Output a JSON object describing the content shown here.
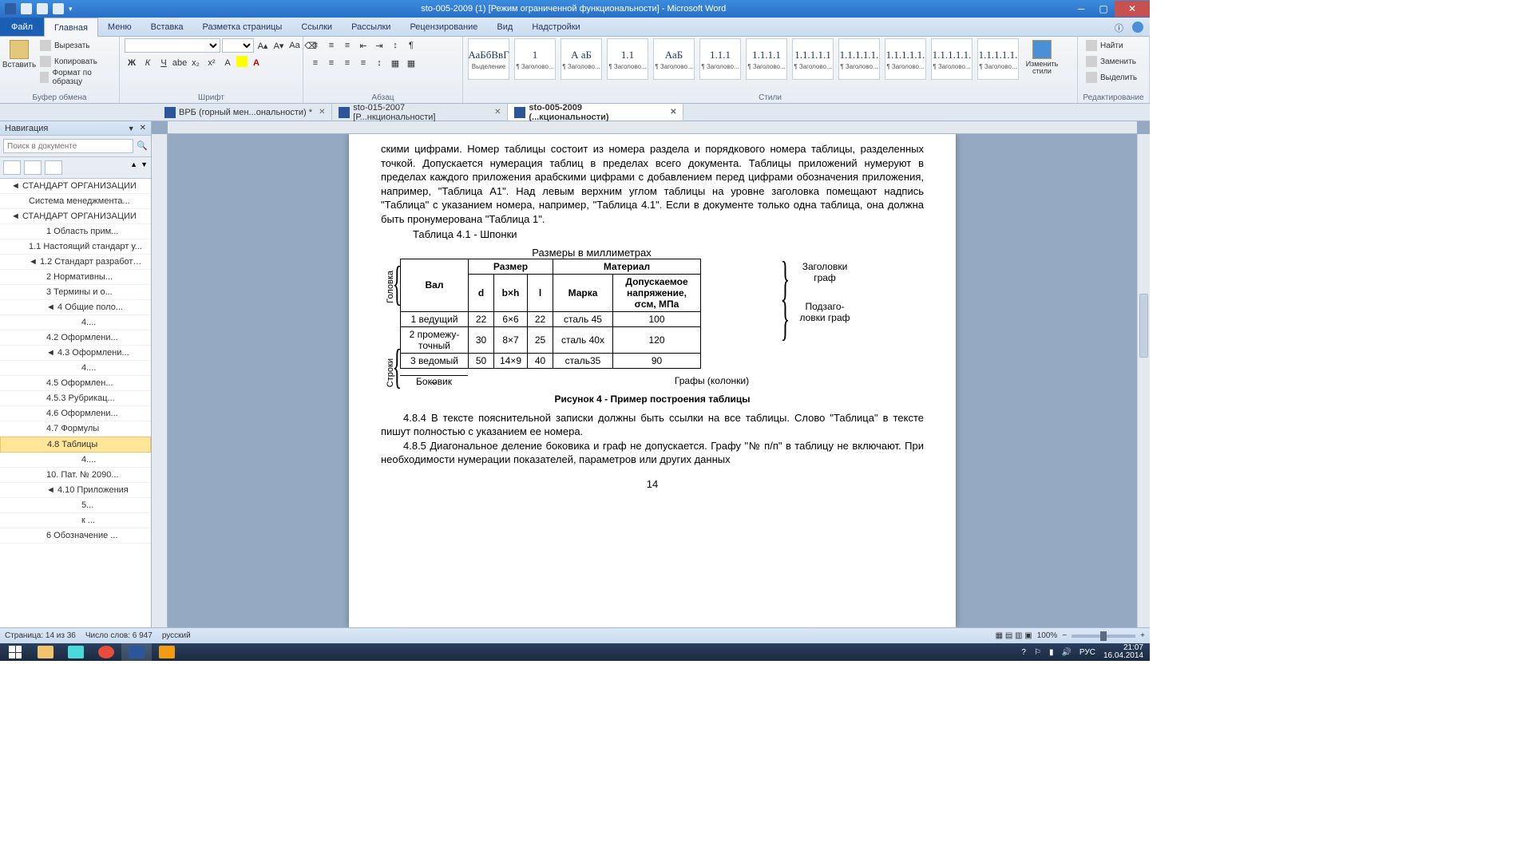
{
  "title": "sto-005-2009 (1) [Режим ограниченной функциональности] - Microsoft Word",
  "ribbon": {
    "file": "Файл",
    "tabs": [
      "Главная",
      "Меню",
      "Вставка",
      "Разметка страницы",
      "Ссылки",
      "Рассылки",
      "Рецензирование",
      "Вид",
      "Надстройки"
    ],
    "active": 0,
    "groups": {
      "clipboard": {
        "title": "Буфер обмена",
        "paste": "Вставить",
        "cut": "Вырезать",
        "copy": "Копировать",
        "format": "Формат по образцу"
      },
      "font": {
        "title": "Шрифт"
      },
      "paragraph": {
        "title": "Абзац"
      },
      "styles": {
        "title": "Стили",
        "change": "Изменить стили"
      },
      "editing": {
        "title": "Редактирование",
        "find": "Найти",
        "replace": "Заменить",
        "select": "Выделить"
      }
    },
    "style_items": [
      {
        "preview": "АаБбВвГ",
        "label": "Выделение"
      },
      {
        "preview": "1",
        "label": "¶ Заголово..."
      },
      {
        "preview": "А аБ",
        "label": "¶ Заголово..."
      },
      {
        "preview": "1.1",
        "label": "¶ Заголово..."
      },
      {
        "preview": "АаБ",
        "label": "¶ Заголово..."
      },
      {
        "preview": "1.1.1",
        "label": "¶ Заголово..."
      },
      {
        "preview": "1.1.1.1",
        "label": "¶ Заголово..."
      },
      {
        "preview": "1.1.1.1.1",
        "label": "¶ Заголово..."
      },
      {
        "preview": "1.1.1.1.1.",
        "label": "¶ Заголово..."
      },
      {
        "preview": "1.1.1.1.1.",
        "label": "¶ Заголово..."
      },
      {
        "preview": "1.1.1.1.1.",
        "label": "¶ Заголово..."
      },
      {
        "preview": "1.1.1.1.1.",
        "label": "¶ Заголово..."
      }
    ]
  },
  "doc_tabs": [
    {
      "label": "ВРБ (горный мен...ональности) *",
      "active": false
    },
    {
      "label": "sto-015-2007 [Р...нкциональности]",
      "active": false
    },
    {
      "label": "sto-005-2009 (...кциональности)",
      "active": true
    }
  ],
  "nav": {
    "title": "Навигация",
    "search_placeholder": "Поиск в документе",
    "items": [
      {
        "t": "◄ СТАНДАРТ ОРГАНИЗАЦИИ",
        "lvl": 1
      },
      {
        "t": "Система менеджмента...",
        "lvl": 2
      },
      {
        "t": "◄ СТАНДАРТ ОРГАНИЗАЦИИ",
        "lvl": 1
      },
      {
        "t": "1 Область прим...",
        "lvl": 3
      },
      {
        "t": "1.1 Настоящий стандарт у...",
        "lvl": 2
      },
      {
        "t": "◄ 1.2 Стандарт разработан ...",
        "lvl": 2
      },
      {
        "t": "2 Нормативны...",
        "lvl": 3
      },
      {
        "t": "3  Термины и о...",
        "lvl": 3
      },
      {
        "t": "◄ 4  Общие поло...",
        "lvl": 3
      },
      {
        "t": "4....",
        "lvl": 5
      },
      {
        "t": "4.2  Оформлени...",
        "lvl": 3
      },
      {
        "t": "◄ 4.3 Оформлени...",
        "lvl": 3
      },
      {
        "t": "4....",
        "lvl": 5
      },
      {
        "t": "4.5  Оформлен...",
        "lvl": 3
      },
      {
        "t": "4.5.3  Рубрикац...",
        "lvl": 3
      },
      {
        "t": "4.6 Оформлени...",
        "lvl": 3
      },
      {
        "t": "4.7 Формулы",
        "lvl": 3
      },
      {
        "t": "4.8  Таблицы",
        "lvl": 3,
        "selected": true
      },
      {
        "t": "4....",
        "lvl": 5
      },
      {
        "t": "10. Пат. № 2090...",
        "lvl": 3
      },
      {
        "t": "◄ 4.10 Приложения",
        "lvl": 3
      },
      {
        "t": "5...",
        "lvl": 5
      },
      {
        "t": "к ...",
        "lvl": 5
      },
      {
        "t": "6 Обозначение ...",
        "lvl": 3
      }
    ]
  },
  "document": {
    "para1": "скими цифрами. Номер таблицы состоит из номера раздела и порядкового номера таблицы, разделенных точкой. Допускается нумерация таблиц в пределах всего документа. Таблицы приложений нумеруют в пределах каждого приложения арабскими цифрами с добавлением перед цифрами обозначения приложения, например, \"Таблица А1\". Над левым верхним углом таблицы на уровне заголовка помещают надпись \"Таблица\" с указанием номера, например, \"Таблица 4.1\". Если в документе только одна таблица, она должна быть пронумерована \"Таблица 1\".",
    "table_title": "Таблица 4.1 - Шпонки",
    "units": "Размеры в миллиметрах",
    "headers": {
      "razmer": "Размер",
      "material": "Материал",
      "val": "Вал",
      "d": "d",
      "bh": "b×h",
      "l": "l",
      "marka": "Марка",
      "stress": "Допускаемое напряжение, σсм, МПа"
    },
    "rows": [
      {
        "val": "1 ведущий",
        "d": "22",
        "bh": "6×6",
        "l": "22",
        "marka": "сталь 45",
        "stress": "100"
      },
      {
        "val": "2 промежу-точный",
        "d": "30",
        "bh": "8×7",
        "l": "25",
        "marka": "сталь 40х",
        "stress": "120"
      },
      {
        "val": "3 ведомый",
        "d": "50",
        "bh": "14×9",
        "l": "40",
        "marka": "сталь35",
        "stress": "90"
      }
    ],
    "ann": {
      "golovka": "Головка",
      "stroki": "Строки",
      "bokovik": "Боковик",
      "grafy": "Графы (колонки)",
      "zagolovki": "Заголовки граф",
      "podzagolovki": "Подзаго-ловки граф"
    },
    "figcaption": "Рисунок 4 - Пример построения таблицы",
    "para2": "4.8.4  В тексте пояснительной записки должны быть ссылки на все таблицы. Слово \"Таблица\" в тексте пишут полностью с указанием ее номера.",
    "para3": "4.8.5 Диагональное деление боковика и граф не допускается. Графу \"№ п/п\" в таблицу не включают. При необходимости нумерации показателей, параметров или других данных",
    "pagenum": "14"
  },
  "status": {
    "page": "Страница: 14 из 36",
    "words": "Число слов: 6 947",
    "lang": "русский",
    "zoom": "100%"
  },
  "taskbar": {
    "lang": "РУС",
    "time": "21:07",
    "date": "16.04.2014"
  }
}
